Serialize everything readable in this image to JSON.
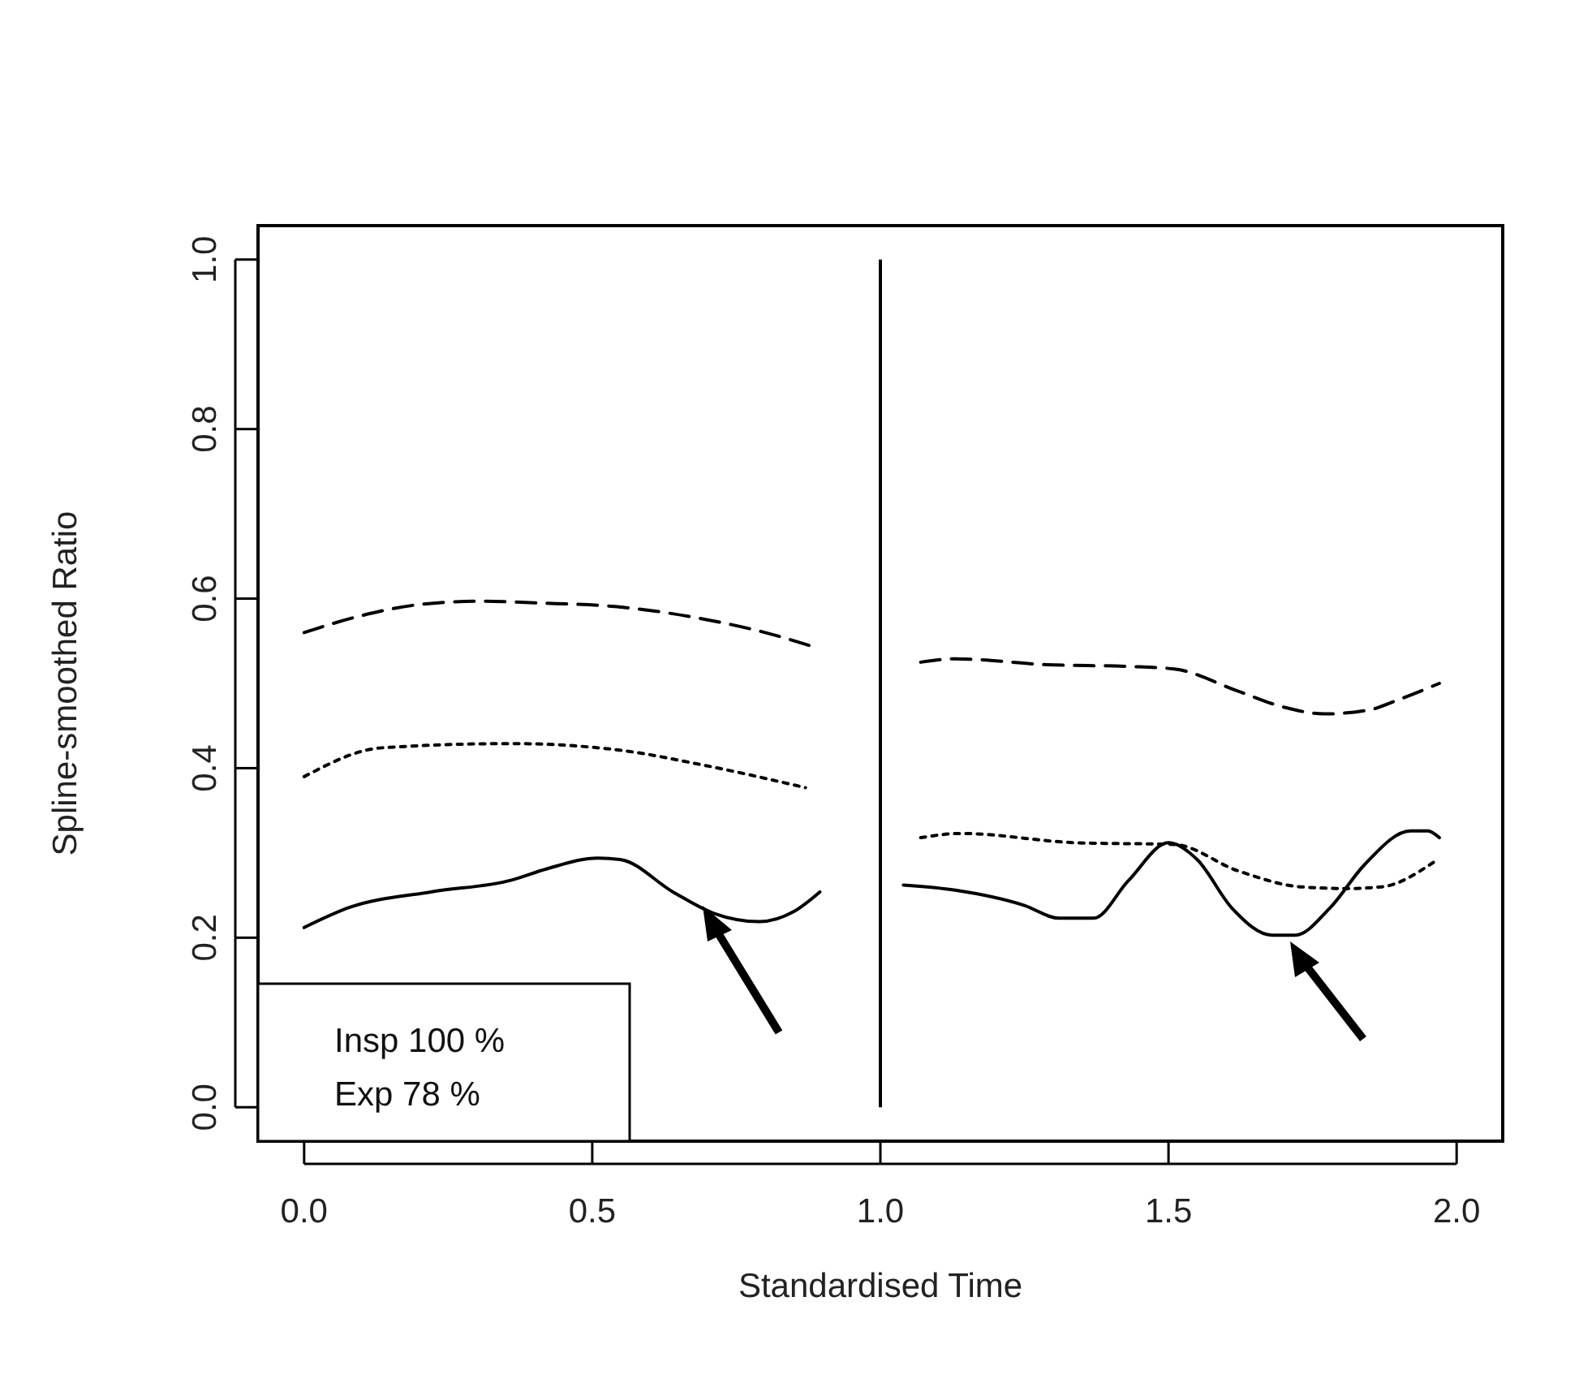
{
  "chart_data": {
    "type": "line",
    "xlabel": "Standardised Time",
    "ylabel": "Spline-smoothed Ratio",
    "xlim": [
      -0.08,
      2.08
    ],
    "ylim": [
      -0.04,
      1.04
    ],
    "xticks": [
      {
        "value": 0,
        "label": "0.0"
      },
      {
        "value": 0.5,
        "label": "0.5"
      },
      {
        "value": 1,
        "label": "1.0"
      },
      {
        "value": 1.5,
        "label": "1.5"
      },
      {
        "value": 2,
        "label": "2.0"
      }
    ],
    "yticks": [
      {
        "value": 0,
        "label": "0.0"
      },
      {
        "value": 0.2,
        "label": "0.2"
      },
      {
        "value": 0.4,
        "label": "0.4"
      },
      {
        "value": 0.6,
        "label": "0.6"
      },
      {
        "value": 0.8,
        "label": "0.8"
      },
      {
        "value": 1,
        "label": "1.0"
      }
    ],
    "marker": "none",
    "annotations": [
      "Insp 100 %",
      "Exp 78 %"
    ],
    "series": [
      {
        "color": "#000000",
        "line_style": "dashed",
        "x": [
          0,
          0.1,
          0.2,
          0.31,
          0.4,
          0.55,
          0.7,
          0.8,
          0.88,
          1,
          1.07,
          1.13,
          1.29,
          1.43,
          1.51,
          1.62,
          1.7,
          1.77,
          1.85,
          1.9,
          1.97
        ],
        "values": [
          0.56,
          0.58,
          0.593,
          0.597,
          0.595,
          0.59,
          0.575,
          0.56,
          0.544,
          null,
          0.525,
          0.529,
          0.522,
          0.52,
          0.517,
          0.491,
          0.472,
          0.464,
          0.469,
          0.481,
          0.5
        ]
      },
      {
        "color": "#000000",
        "line_style": "dotted",
        "x": [
          0,
          0.135,
          0.36,
          0.55,
          0.69,
          0.87,
          1,
          1.07,
          1.14,
          1.34,
          1.51,
          1.62,
          1.73,
          1.81,
          1.87,
          1.96
        ],
        "values": [
          0.39,
          0.424,
          0.429,
          0.421,
          0.404,
          0.377,
          null,
          0.318,
          0.323,
          0.312,
          0.31,
          0.279,
          0.26,
          0.258,
          0.26,
          0.289
        ]
      },
      {
        "color": "#000000",
        "line_style": "solid",
        "x": [
          0,
          0.08,
          0.22,
          0.36,
          0.42,
          0.51,
          0.55,
          0.64,
          0.71,
          0.79,
          0.85,
          0.895,
          1,
          1.04,
          1.13,
          1.25,
          1.31,
          1.37,
          1.43,
          1.5,
          1.55,
          1.61,
          1.68,
          1.72,
          1.78,
          1.84,
          1.92,
          1.95,
          1.97
        ],
        "values": [
          0.212,
          0.236,
          0.254,
          0.268,
          0.281,
          0.294,
          0.292,
          0.254,
          0.229,
          0.219,
          0.231,
          0.254,
          null,
          0.262,
          0.256,
          0.238,
          0.223,
          0.223,
          0.267,
          0.312,
          0.292,
          0.235,
          0.203,
          0.203,
          0.235,
          0.286,
          0.326,
          0.326,
          0.318
        ]
      }
    ],
    "ref_lines": [
      {
        "axis": "x",
        "value": 1,
        "color": "#000000",
        "line_style": "solid"
      }
    ]
  }
}
